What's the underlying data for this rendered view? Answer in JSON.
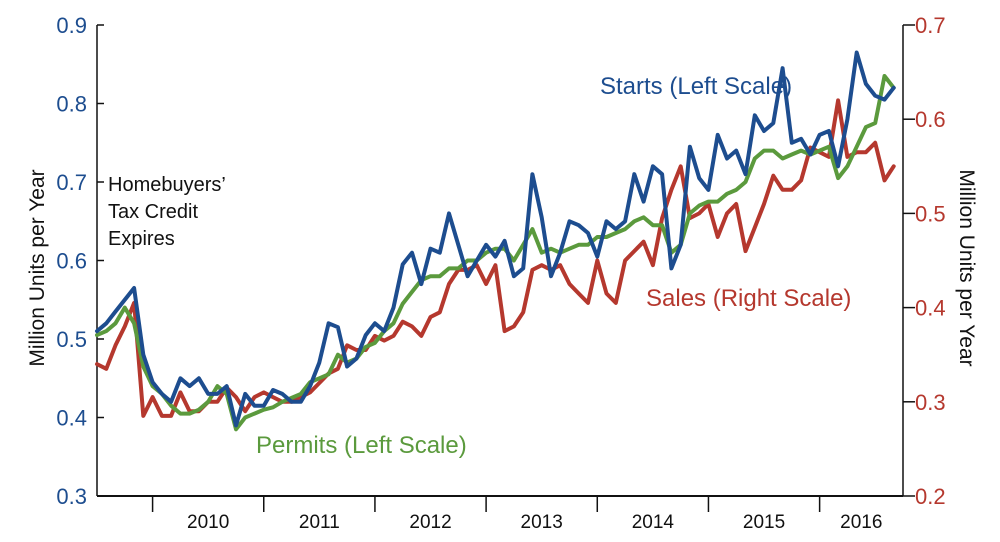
{
  "chart_data": {
    "type": "line",
    "title": "",
    "left_axis": {
      "label": "Million Units per Year",
      "range": [
        0.3,
        0.9
      ],
      "ticks": [
        "0.3",
        "0.4",
        "0.5",
        "0.6",
        "0.7",
        "0.8",
        "0.9"
      ]
    },
    "right_axis": {
      "label": "Million Units per Year",
      "range": [
        0.2,
        0.7
      ],
      "ticks": [
        "0.2",
        "0.3",
        "0.4",
        "0.5",
        "0.6",
        "0.7"
      ]
    },
    "x_axis": {
      "range": [
        2009.5,
        2016.75
      ],
      "year_labels": [
        "2010",
        "2011",
        "2012",
        "2013",
        "2014",
        "2015",
        "2016"
      ]
    },
    "grid": false,
    "annotation": {
      "lines": [
        "Homebuyers’",
        "Tax Credit",
        "Expires"
      ]
    },
    "series": [
      {
        "name": "Starts (Left Scale)",
        "axis": "left",
        "color": "#1d4d8f",
        "start": 2009.5,
        "step_months": 1,
        "values": [
          0.51,
          0.52,
          0.535,
          0.55,
          0.565,
          0.48,
          0.445,
          0.43,
          0.42,
          0.45,
          0.44,
          0.45,
          0.43,
          0.43,
          0.44,
          0.39,
          0.43,
          0.415,
          0.415,
          0.435,
          0.43,
          0.42,
          0.42,
          0.44,
          0.47,
          0.52,
          0.515,
          0.465,
          0.475,
          0.505,
          0.52,
          0.51,
          0.54,
          0.595,
          0.61,
          0.57,
          0.615,
          0.61,
          0.66,
          0.62,
          0.58,
          0.6,
          0.62,
          0.605,
          0.625,
          0.58,
          0.59,
          0.71,
          0.655,
          0.58,
          0.61,
          0.65,
          0.645,
          0.635,
          0.605,
          0.65,
          0.64,
          0.65,
          0.71,
          0.675,
          0.72,
          0.71,
          0.59,
          0.62,
          0.745,
          0.705,
          0.69,
          0.76,
          0.73,
          0.74,
          0.71,
          0.785,
          0.765,
          0.775,
          0.845,
          0.75,
          0.755,
          0.735,
          0.76,
          0.765,
          0.72,
          0.78,
          0.865,
          0.825,
          0.81,
          0.805,
          0.82
        ]
      },
      {
        "name": "Permits (Left Scale)",
        "axis": "left",
        "color": "#5b9a3d",
        "start": 2009.5,
        "step_months": 1,
        "values": [
          0.505,
          0.51,
          0.52,
          0.54,
          0.52,
          0.465,
          0.44,
          0.43,
          0.415,
          0.405,
          0.405,
          0.41,
          0.42,
          0.44,
          0.43,
          0.385,
          0.4,
          0.405,
          0.41,
          0.413,
          0.42,
          0.425,
          0.43,
          0.445,
          0.45,
          0.455,
          0.48,
          0.47,
          0.475,
          0.49,
          0.495,
          0.51,
          0.52,
          0.545,
          0.56,
          0.575,
          0.58,
          0.58,
          0.59,
          0.59,
          0.6,
          0.6,
          0.61,
          0.615,
          0.615,
          0.6,
          0.62,
          0.64,
          0.61,
          0.615,
          0.61,
          0.615,
          0.62,
          0.62,
          0.63,
          0.63,
          0.635,
          0.64,
          0.65,
          0.655,
          0.645,
          0.645,
          0.61,
          0.62,
          0.66,
          0.67,
          0.675,
          0.675,
          0.685,
          0.69,
          0.7,
          0.73,
          0.74,
          0.74,
          0.73,
          0.735,
          0.74,
          0.735,
          0.74,
          0.745,
          0.705,
          0.72,
          0.745,
          0.77,
          0.775,
          0.835,
          0.82
        ]
      },
      {
        "name": "Sales (Right Scale)",
        "axis": "right",
        "color": "#b5382e",
        "start": 2009.5,
        "step_months": 1,
        "values": [
          0.34,
          0.335,
          0.36,
          0.38,
          0.405,
          0.285,
          0.305,
          0.285,
          0.285,
          0.31,
          0.29,
          0.29,
          0.3,
          0.3,
          0.315,
          0.305,
          0.29,
          0.305,
          0.31,
          0.305,
          0.3,
          0.3,
          0.305,
          0.31,
          0.32,
          0.33,
          0.335,
          0.36,
          0.355,
          0.355,
          0.37,
          0.365,
          0.37,
          0.385,
          0.38,
          0.37,
          0.39,
          0.395,
          0.425,
          0.44,
          0.44,
          0.445,
          0.425,
          0.445,
          0.375,
          0.38,
          0.395,
          0.44,
          0.445,
          0.44,
          0.445,
          0.425,
          0.415,
          0.405,
          0.45,
          0.415,
          0.405,
          0.45,
          0.46,
          0.47,
          0.445,
          0.495,
          0.525,
          0.55,
          0.495,
          0.5,
          0.51,
          0.475,
          0.5,
          0.51,
          0.46,
          0.485,
          0.51,
          0.54,
          0.525,
          0.525,
          0.535,
          0.57,
          0.565,
          0.56,
          0.62,
          0.56,
          0.565,
          0.565,
          0.575,
          0.535,
          0.55
        ]
      }
    ]
  }
}
